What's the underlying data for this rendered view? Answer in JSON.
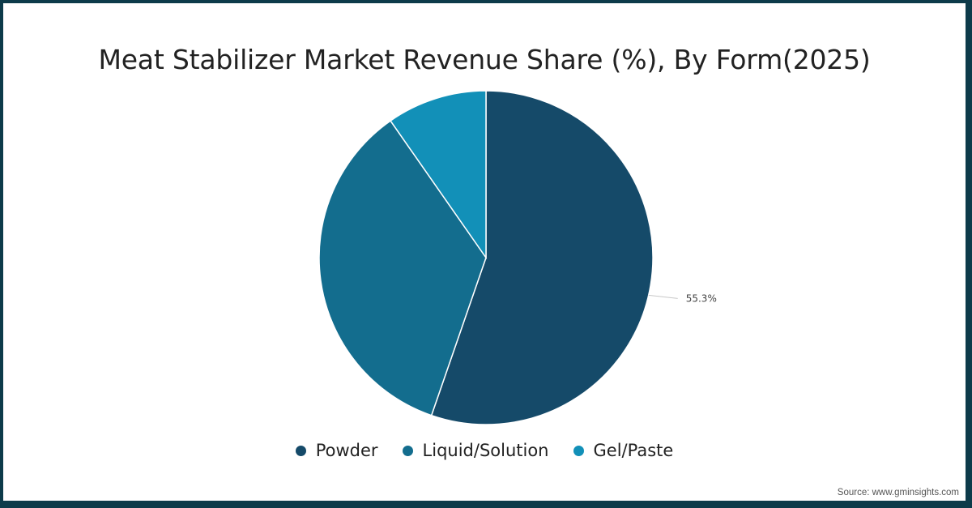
{
  "title": "Meat Stabilizer Market Revenue Share (%), By Form(2025)",
  "source": "Source: www.gminsights.com",
  "colors": {
    "frame": "#0d3b4a",
    "Powder": "#154a69",
    "Liquid/Solution": "#136d8e",
    "Gel/Paste": "#1290b8"
  },
  "legend": [
    {
      "label": "Powder",
      "color": "#154a69"
    },
    {
      "label": "Liquid/Solution",
      "color": "#136d8e"
    },
    {
      "label": "Gel/Paste",
      "color": "#1290b8"
    }
  ],
  "chart_data": {
    "type": "pie",
    "title": "Meat Stabilizer Market Revenue Share (%), By Form(2025)",
    "categories": [
      "Powder",
      "Liquid/Solution",
      "Gel/Paste"
    ],
    "values": [
      55.3,
      35.0,
      9.7
    ],
    "data_labels": [
      "55.3%",
      "",
      ""
    ],
    "legend_position": "bottom",
    "start_angle_deg": 0,
    "direction": "clockwise"
  }
}
